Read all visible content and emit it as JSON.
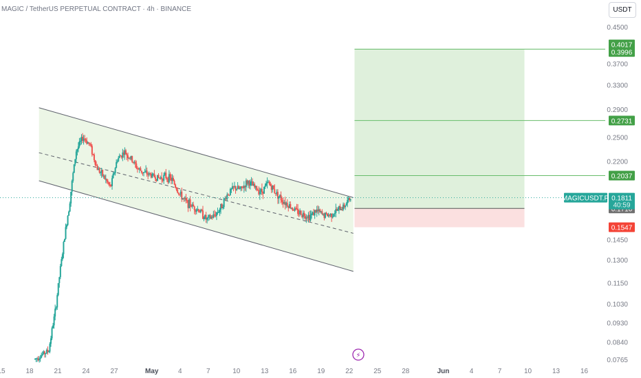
{
  "title": "MAGIC / TetherUS PERPETUAL CONTRACT · 4h · BINANCE",
  "currency_button": "USDT",
  "colors": {
    "up": "#26a69a",
    "down": "#ef5350",
    "channel_fill": "#ecf6e6",
    "target_fill": "#dff0dc",
    "stop_fill": "#fbe0e0",
    "green_label": "#43a047",
    "red_label": "#f44336",
    "current_label": "#26a69a",
    "entry_label": "#707070",
    "axis_text": "#787b86"
  },
  "chart_data": {
    "type": "candlestick",
    "symbol": "MAGICUSDT.P",
    "interval": "4h",
    "y_axis_scale": "log",
    "ylim": [
      0.0765,
      0.48
    ],
    "y_ticks": [
      "0.4500",
      "0.3700",
      "0.3300",
      "0.2900",
      "0.2500",
      "0.2200",
      "0.1450",
      "0.1300",
      "0.1150",
      "0.1030",
      "0.0930",
      "0.0840",
      "0.0765"
    ],
    "x_ticks": [
      "15",
      "18",
      "21",
      "24",
      "27",
      "May",
      "4",
      "7",
      "10",
      "13",
      "16",
      "19",
      "22",
      "25",
      "28",
      "Jun",
      "4",
      "7",
      "10",
      "13",
      "16"
    ],
    "current_price": {
      "symbol": "MAGICUSDT.P",
      "price": "0.1811",
      "countdown": "40:59"
    },
    "levels": [
      {
        "label": "0.4017",
        "role": "target"
      },
      {
        "label": "0.3996",
        "role": "target"
      },
      {
        "label": "0.2731",
        "role": "target"
      },
      {
        "label": "0.2037",
        "role": "target"
      },
      {
        "label": "0.1710",
        "role": "entry"
      },
      {
        "label": "0.1547",
        "role": "stop"
      }
    ],
    "position": {
      "entry": 0.171,
      "target": 0.3996,
      "stop": 0.1547,
      "start_date": "May 23",
      "end_date": "Jun 10"
    },
    "channel": {
      "upper_start": 0.2924,
      "upper_end": 0.1812,
      "middle_start": 0.2301,
      "middle_end": 0.1498,
      "lower_start": 0.1982,
      "lower_end": 0.1223,
      "start_date": "Apr 19",
      "end_date": "May 22"
    },
    "price_path": [
      [
        0.0765,
        0.0768
      ],
      [
        0.078,
        0.079
      ],
      [
        0.0795,
        0.081
      ],
      [
        0.095,
        0.105
      ],
      [
        0.125,
        0.145
      ],
      [
        0.158,
        0.19
      ],
      [
        0.21,
        0.255
      ],
      [
        0.245,
        0.255
      ],
      [
        0.238,
        0.242
      ],
      [
        0.21,
        0.215
      ],
      [
        0.2,
        0.205
      ],
      [
        0.19,
        0.192
      ],
      [
        0.22,
        0.225
      ],
      [
        0.23,
        0.232
      ],
      [
        0.22,
        0.225
      ],
      [
        0.21,
        0.212
      ],
      [
        0.205,
        0.208
      ],
      [
        0.203,
        0.205
      ],
      [
        0.2,
        0.202
      ],
      [
        0.202,
        0.204
      ],
      [
        0.198,
        0.2
      ],
      [
        0.184,
        0.186
      ],
      [
        0.176,
        0.178
      ],
      [
        0.172,
        0.174
      ],
      [
        0.168,
        0.17
      ],
      [
        0.16,
        0.162
      ],
      [
        0.163,
        0.165
      ],
      [
        0.17,
        0.172
      ],
      [
        0.182,
        0.186
      ],
      [
        0.19,
        0.192
      ],
      [
        0.188,
        0.19
      ],
      [
        0.195,
        0.2
      ],
      [
        0.19,
        0.192
      ],
      [
        0.186,
        0.188
      ],
      [
        0.194,
        0.198
      ],
      [
        0.186,
        0.188
      ],
      [
        0.178,
        0.18
      ],
      [
        0.173,
        0.175
      ],
      [
        0.168,
        0.17
      ],
      [
        0.165,
        0.167
      ],
      [
        0.163,
        0.165
      ],
      [
        0.168,
        0.17
      ],
      [
        0.164,
        0.166
      ],
      [
        0.164,
        0.166
      ],
      [
        0.168,
        0.17
      ],
      [
        0.172,
        0.174
      ],
      [
        0.18,
        0.182
      ]
    ],
    "event_marker": "⚡"
  }
}
